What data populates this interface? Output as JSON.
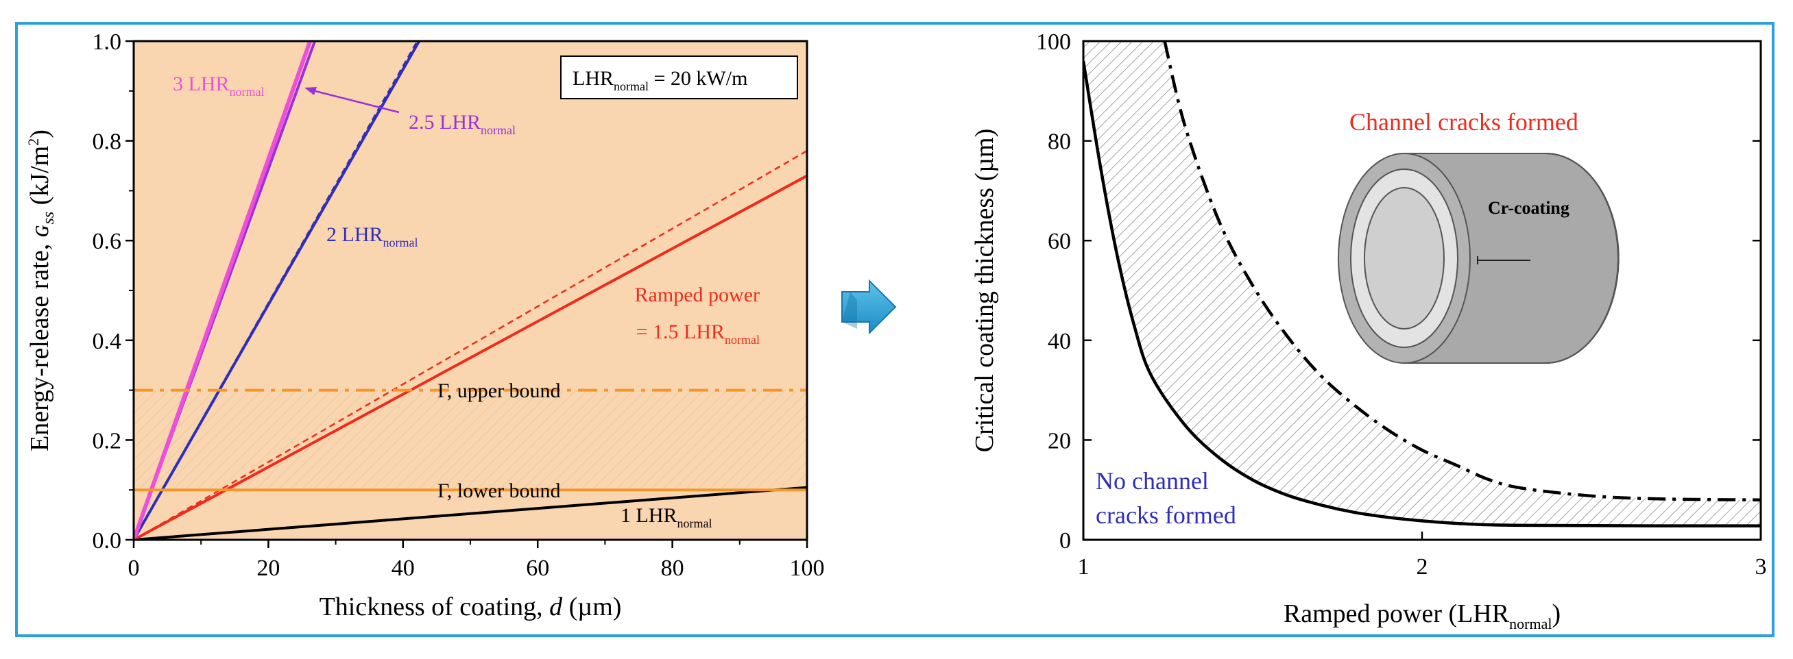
{
  "chart_data": [
    {
      "type": "line",
      "id": "energy_release",
      "xlabel_parts": [
        "Thickness of coating, ",
        "d",
        " (µm)"
      ],
      "ylabel_parts": [
        "Energy-release rate, ",
        "ɢ",
        "ss",
        "  (kJ/m",
        "2",
        ")"
      ],
      "xlim": [
        0,
        100
      ],
      "ylim": [
        0,
        1.0
      ],
      "xticks": [
        0,
        20,
        40,
        60,
        80,
        100
      ],
      "yticks": [
        0.0,
        0.2,
        0.4,
        0.6,
        0.8,
        1.0
      ],
      "ytick_labels": [
        "0.0",
        "0.2",
        "0.4",
        "0.6",
        "0.8",
        "1.0"
      ],
      "legend_box": {
        "main": "LHR",
        "sub": "normal",
        "tail": " = 20 kW/m"
      },
      "background_color": "#fad6b0",
      "series": [
        {
          "name": "1 LHR_normal",
          "label_main": "1 LHR",
          "label_sub": "normal",
          "color": "#000000",
          "style": "solid",
          "x": [
            0,
            100
          ],
          "y": [
            0,
            0.105
          ]
        },
        {
          "name": "Ramped power = 1.5 LHR_normal",
          "label_lines": [
            "Ramped power",
            "= 1.5 LHR"
          ],
          "label_sub": "normal",
          "color": "#ee2b1c",
          "style": "solid",
          "x": [
            0,
            100
          ],
          "y": [
            0,
            0.73
          ]
        },
        {
          "name": "Ramped power (dashed)",
          "color": "#ee2b1c",
          "style": "dashed",
          "x": [
            0,
            100
          ],
          "y": [
            0,
            0.78
          ]
        },
        {
          "name": "2 LHR_normal",
          "label_main": "2 LHR",
          "label_sub": "normal",
          "color": "#2e2eb8",
          "style": "solid",
          "x": [
            0,
            42.4
          ],
          "y": [
            0,
            1.0
          ]
        },
        {
          "name": "2 LHR_normal (dashed)",
          "color": "#2e2eb8",
          "style": "dashed",
          "x": [
            0,
            42.1
          ],
          "y": [
            0,
            1.0
          ]
        },
        {
          "name": "2.5 LHR_normal",
          "label_main": "2.5 LHR",
          "label_sub": "normal",
          "color": "#9b30d9",
          "style": "solid",
          "x": [
            0,
            26.9
          ],
          "y": [
            0,
            1.0
          ]
        },
        {
          "name": "3 LHR_normal",
          "label_main": "3 LHR",
          "label_sub": "normal",
          "color": "#ee4fd8",
          "style": "solid",
          "x": [
            0,
            26.2
          ],
          "y": [
            0,
            1.0
          ]
        }
      ],
      "bounds": {
        "upper": {
          "y": 0.3,
          "label_main": "Γ",
          "label_tail": ", upper bound",
          "color": "#f5962b"
        },
        "lower": {
          "y": 0.1,
          "label_main": "Γ",
          "label_tail": ", lower bound",
          "color": "#f5962b"
        }
      }
    },
    {
      "type": "line",
      "id": "critical_thickness",
      "xlabel": "Ramped power (LHR",
      "xlabel_sub": "normal",
      "xlabel_tail": ")",
      "ylabel": "Critical coating thickness (µm)",
      "xlim": [
        1,
        3
      ],
      "ylim": [
        0,
        100
      ],
      "xticks": [
        1,
        2,
        3
      ],
      "yticks": [
        0,
        20,
        40,
        60,
        80,
        100
      ],
      "series": [
        {
          "name": "lower bound",
          "color": "#000000",
          "style": "solid",
          "x": [
            1.0,
            1.05,
            1.1,
            1.15,
            1.2,
            1.3,
            1.4,
            1.5,
            1.6,
            1.7,
            1.8,
            1.9,
            2.0,
            2.1,
            2.2,
            2.3,
            2.5,
            2.7,
            3.0
          ],
          "y": [
            96,
            75,
            57,
            43,
            33,
            23,
            16.5,
            12,
            9,
            7,
            5.5,
            4.5,
            3.8,
            3.3,
            3.0,
            2.9,
            2.85,
            2.8,
            2.8
          ]
        },
        {
          "name": "upper bound",
          "color": "#000000",
          "style": "dashdot",
          "x": [
            1.24,
            1.3,
            1.4,
            1.5,
            1.6,
            1.7,
            1.8,
            1.9,
            2.0,
            2.1,
            2.2,
            2.3,
            2.5,
            2.7,
            3.0
          ],
          "y": [
            100,
            83,
            64,
            51,
            41,
            33,
            27,
            22,
            18,
            15,
            12,
            10.3,
            8.8,
            8.2,
            8.0
          ]
        }
      ],
      "annotations": {
        "upper_region": "Channel cracks formed",
        "upper_color": "#ee2b1c",
        "lower_region": [
          "No channel",
          "cracks formed"
        ],
        "lower_color": "#2e2eb8",
        "inset_label": "Cr-coating"
      }
    }
  ]
}
